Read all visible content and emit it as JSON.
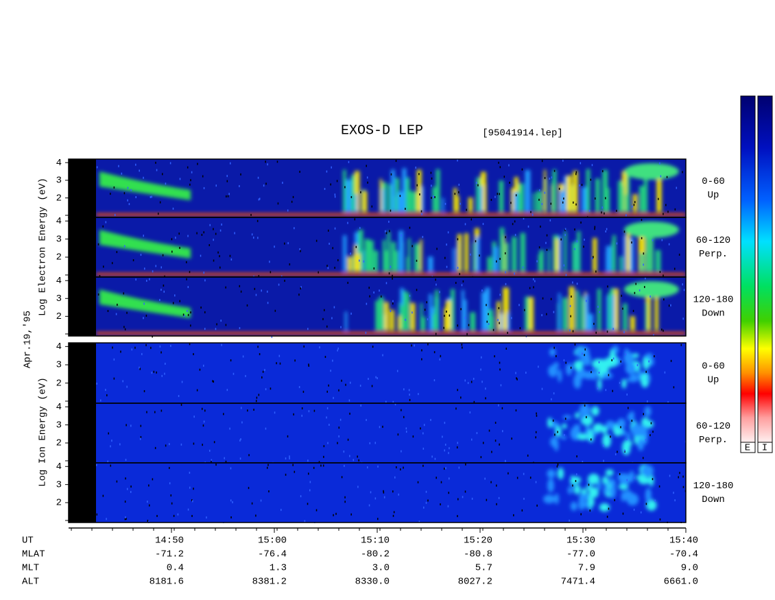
{
  "title": "EXOS-D LEP",
  "file": "[95041914.lep]",
  "date": "Apr.19,'95",
  "electron_axis_label": "Log  Electron  Energy (eV)",
  "ion_axis_label": "Log  Ion  Energy (eV)",
  "ylim": [
    0.9,
    4.2
  ],
  "yticks": [
    2,
    3,
    4
  ],
  "electron_panels": [
    {
      "range": "0-60",
      "label": "Up"
    },
    {
      "range": "60-120",
      "label": "Perp."
    },
    {
      "range": "120-180",
      "label": "Down"
    }
  ],
  "ion_panels": [
    {
      "range": "0-60",
      "label": "Up"
    },
    {
      "range": "60-120",
      "label": "Perp."
    },
    {
      "range": "120-180",
      "label": "Down"
    }
  ],
  "time_axis": {
    "rows": [
      {
        "name": "UT",
        "values": [
          "14:50",
          "15:00",
          "15:10",
          "15:20",
          "15:30",
          "15:40"
        ]
      },
      {
        "name": "MLAT",
        "values": [
          "-71.2",
          "-76.4",
          "-80.2",
          "-80.8",
          "-77.0",
          "-70.4"
        ]
      },
      {
        "name": "MLT",
        "values": [
          "0.4",
          "1.3",
          "3.0",
          "5.7",
          "7.9",
          "9.0"
        ]
      },
      {
        "name": "ALT",
        "values": [
          "8181.6",
          "8381.2",
          "8330.0",
          "8027.2",
          "7471.4",
          "6661.0"
        ]
      }
    ]
  },
  "colorbar_labels": [
    "E",
    "I"
  ]
}
